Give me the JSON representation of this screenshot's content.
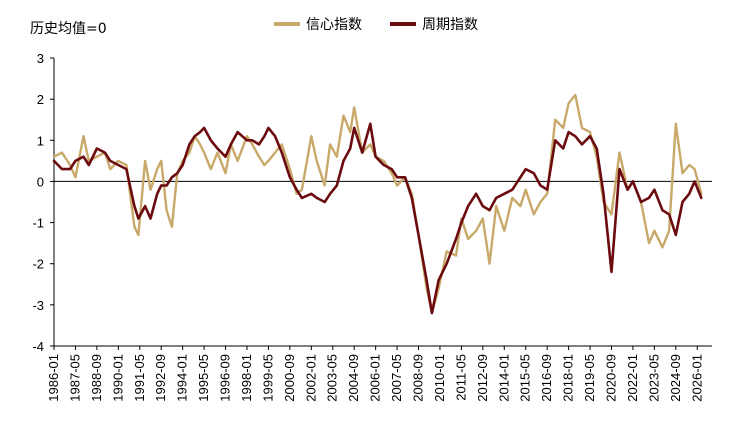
{
  "chart_data": {
    "type": "line",
    "annotation": "历史均值=0",
    "ylim": [
      -4,
      3
    ],
    "yticks": [
      3,
      2,
      1,
      0,
      -1,
      -2,
      -3,
      -4
    ],
    "x_labels": [
      "1986-01",
      "1987-05",
      "1988-09",
      "1990-01",
      "1991-05",
      "1992-09",
      "1994-01",
      "1995-05",
      "1996-09",
      "1998-01",
      "1999-05",
      "2000-09",
      "2002-01",
      "2003-05",
      "2004-09",
      "2006-01",
      "2007-05",
      "2008-09",
      "2010-01",
      "2011-05",
      "2012-09",
      "2014-01",
      "2015-05",
      "2016-09",
      "2018-01",
      "2019-05",
      "2020-09",
      "2022-01",
      "2023-05",
      "2024-09",
      "2026-01"
    ],
    "legend_position": "top",
    "colors": {
      "confidence": "#C8A96A",
      "cycle": "#6B0A0F",
      "axis": "#000000"
    },
    "series": [
      {
        "name": "信心指数",
        "key": "confidence",
        "points": [
          [
            "1986-01",
            0.6
          ],
          [
            "1986-07",
            0.7
          ],
          [
            "1987-01",
            0.4
          ],
          [
            "1987-05",
            0.1
          ],
          [
            "1987-11",
            1.1
          ],
          [
            "1988-03",
            0.5
          ],
          [
            "1988-09",
            0.6
          ],
          [
            "1989-03",
            0.7
          ],
          [
            "1989-07",
            0.3
          ],
          [
            "1990-01",
            0.5
          ],
          [
            "1990-07",
            0.4
          ],
          [
            "1991-01",
            -1.1
          ],
          [
            "1991-04",
            -1.3
          ],
          [
            "1991-09",
            0.5
          ],
          [
            "1992-01",
            -0.2
          ],
          [
            "1992-06",
            0.3
          ],
          [
            "1992-09",
            0.5
          ],
          [
            "1993-01",
            -0.7
          ],
          [
            "1993-05",
            -1.1
          ],
          [
            "1993-09",
            0.2
          ],
          [
            "1994-01",
            0.5
          ],
          [
            "1994-06",
            0.7
          ],
          [
            "1994-10",
            1.1
          ],
          [
            "1995-02",
            0.9
          ],
          [
            "1995-05",
            0.7
          ],
          [
            "1995-10",
            0.3
          ],
          [
            "1996-03",
            0.7
          ],
          [
            "1996-09",
            0.2
          ],
          [
            "1997-01",
            0.9
          ],
          [
            "1997-06",
            0.5
          ],
          [
            "1998-01",
            1.1
          ],
          [
            "1998-05",
            0.9
          ],
          [
            "1998-10",
            0.6
          ],
          [
            "1999-02",
            0.4
          ],
          [
            "1999-05",
            0.5
          ],
          [
            "1999-10",
            0.7
          ],
          [
            "2000-03",
            0.9
          ],
          [
            "2000-09",
            0.3
          ],
          [
            "2001-02",
            -0.3
          ],
          [
            "2001-06",
            -0.2
          ],
          [
            "2002-01",
            1.1
          ],
          [
            "2002-05",
            0.5
          ],
          [
            "2002-11",
            -0.1
          ],
          [
            "2003-03",
            0.9
          ],
          [
            "2003-08",
            0.6
          ],
          [
            "2004-01",
            1.6
          ],
          [
            "2004-06",
            1.2
          ],
          [
            "2004-09",
            1.8
          ],
          [
            "2005-03",
            0.7
          ],
          [
            "2005-09",
            0.9
          ],
          [
            "2006-01",
            0.6
          ],
          [
            "2006-07",
            0.5
          ],
          [
            "2007-01",
            0.2
          ],
          [
            "2007-05",
            -0.1
          ],
          [
            "2007-11",
            0.1
          ],
          [
            "2008-04",
            -0.3
          ],
          [
            "2008-09",
            -1.3
          ],
          [
            "2009-03",
            -2.6
          ],
          [
            "2009-07",
            -3.2
          ],
          [
            "2009-12",
            -2.6
          ],
          [
            "2010-06",
            -1.7
          ],
          [
            "2011-01",
            -1.8
          ],
          [
            "2011-05",
            -0.9
          ],
          [
            "2011-10",
            -1.4
          ],
          [
            "2012-04",
            -1.2
          ],
          [
            "2012-09",
            -0.9
          ],
          [
            "2013-02",
            -2.0
          ],
          [
            "2013-07",
            -0.6
          ],
          [
            "2014-01",
            -1.2
          ],
          [
            "2014-07",
            -0.4
          ],
          [
            "2015-01",
            -0.6
          ],
          [
            "2015-05",
            -0.2
          ],
          [
            "2015-11",
            -0.8
          ],
          [
            "2016-04",
            -0.5
          ],
          [
            "2016-09",
            -0.3
          ],
          [
            "2017-03",
            1.5
          ],
          [
            "2017-09",
            1.3
          ],
          [
            "2018-01",
            1.9
          ],
          [
            "2018-06",
            2.1
          ],
          [
            "2018-11",
            1.3
          ],
          [
            "2019-05",
            1.2
          ],
          [
            "2019-10",
            0.6
          ],
          [
            "2020-03",
            -0.5
          ],
          [
            "2020-09",
            -0.8
          ],
          [
            "2021-03",
            0.7
          ],
          [
            "2021-09",
            -0.2
          ],
          [
            "2022-01",
            0.0
          ],
          [
            "2022-07",
            -0.5
          ],
          [
            "2023-01",
            -1.5
          ],
          [
            "2023-05",
            -1.2
          ],
          [
            "2023-11",
            -1.6
          ],
          [
            "2024-04",
            -1.2
          ],
          [
            "2024-09",
            1.4
          ],
          [
            "2025-02",
            0.2
          ],
          [
            "2025-07",
            0.4
          ],
          [
            "2025-11",
            0.3
          ],
          [
            "2026-04",
            -0.3
          ]
        ]
      },
      {
        "name": "周期指数",
        "key": "cycle",
        "points": [
          [
            "1986-01",
            0.5
          ],
          [
            "1986-07",
            0.3
          ],
          [
            "1987-01",
            0.3
          ],
          [
            "1987-05",
            0.5
          ],
          [
            "1987-11",
            0.6
          ],
          [
            "1988-03",
            0.4
          ],
          [
            "1988-09",
            0.8
          ],
          [
            "1989-03",
            0.7
          ],
          [
            "1989-07",
            0.5
          ],
          [
            "1990-01",
            0.4
          ],
          [
            "1990-07",
            0.3
          ],
          [
            "1991-01",
            -0.6
          ],
          [
            "1991-04",
            -0.9
          ],
          [
            "1991-09",
            -0.6
          ],
          [
            "1992-01",
            -0.9
          ],
          [
            "1992-06",
            -0.3
          ],
          [
            "1992-09",
            -0.1
          ],
          [
            "1993-01",
            -0.1
          ],
          [
            "1993-05",
            0.1
          ],
          [
            "1993-09",
            0.2
          ],
          [
            "1994-01",
            0.4
          ],
          [
            "1994-06",
            0.9
          ],
          [
            "1994-10",
            1.1
          ],
          [
            "1995-02",
            1.2
          ],
          [
            "1995-05",
            1.3
          ],
          [
            "1995-10",
            1.0
          ],
          [
            "1996-03",
            0.8
          ],
          [
            "1996-09",
            0.6
          ],
          [
            "1997-01",
            0.9
          ],
          [
            "1997-06",
            1.2
          ],
          [
            "1998-01",
            1.0
          ],
          [
            "1998-05",
            1.0
          ],
          [
            "1998-10",
            0.9
          ],
          [
            "1999-02",
            1.1
          ],
          [
            "1999-05",
            1.3
          ],
          [
            "1999-10",
            1.1
          ],
          [
            "2000-03",
            0.7
          ],
          [
            "2000-09",
            0.1
          ],
          [
            "2001-02",
            -0.2
          ],
          [
            "2001-06",
            -0.4
          ],
          [
            "2002-01",
            -0.3
          ],
          [
            "2002-05",
            -0.4
          ],
          [
            "2002-11",
            -0.5
          ],
          [
            "2003-03",
            -0.3
          ],
          [
            "2003-08",
            -0.1
          ],
          [
            "2004-01",
            0.5
          ],
          [
            "2004-06",
            0.8
          ],
          [
            "2004-09",
            1.3
          ],
          [
            "2005-03",
            0.7
          ],
          [
            "2005-09",
            1.4
          ],
          [
            "2006-01",
            0.6
          ],
          [
            "2006-07",
            0.4
          ],
          [
            "2007-01",
            0.3
          ],
          [
            "2007-05",
            0.1
          ],
          [
            "2007-11",
            0.1
          ],
          [
            "2008-04",
            -0.4
          ],
          [
            "2008-09",
            -1.3
          ],
          [
            "2009-03",
            -2.4
          ],
          [
            "2009-07",
            -3.2
          ],
          [
            "2009-12",
            -2.4
          ],
          [
            "2010-06",
            -2.0
          ],
          [
            "2011-01",
            -1.4
          ],
          [
            "2011-05",
            -1.0
          ],
          [
            "2011-10",
            -0.6
          ],
          [
            "2012-04",
            -0.3
          ],
          [
            "2012-09",
            -0.6
          ],
          [
            "2013-02",
            -0.7
          ],
          [
            "2013-07",
            -0.4
          ],
          [
            "2014-01",
            -0.3
          ],
          [
            "2014-07",
            -0.2
          ],
          [
            "2015-01",
            0.1
          ],
          [
            "2015-05",
            0.3
          ],
          [
            "2015-11",
            0.2
          ],
          [
            "2016-04",
            -0.1
          ],
          [
            "2016-09",
            -0.2
          ],
          [
            "2017-03",
            1.0
          ],
          [
            "2017-09",
            0.8
          ],
          [
            "2018-01",
            1.2
          ],
          [
            "2018-06",
            1.1
          ],
          [
            "2018-11",
            0.9
          ],
          [
            "2019-05",
            1.1
          ],
          [
            "2019-10",
            0.8
          ],
          [
            "2020-03",
            -0.3
          ],
          [
            "2020-09",
            -2.2
          ],
          [
            "2021-03",
            0.3
          ],
          [
            "2021-09",
            -0.2
          ],
          [
            "2022-01",
            0.0
          ],
          [
            "2022-07",
            -0.5
          ],
          [
            "2023-01",
            -0.4
          ],
          [
            "2023-05",
            -0.2
          ],
          [
            "2023-11",
            -0.7
          ],
          [
            "2024-04",
            -0.8
          ],
          [
            "2024-09",
            -1.3
          ],
          [
            "2025-02",
            -0.5
          ],
          [
            "2025-07",
            -0.3
          ],
          [
            "2025-11",
            0.0
          ],
          [
            "2026-04",
            -0.4
          ]
        ]
      }
    ]
  }
}
